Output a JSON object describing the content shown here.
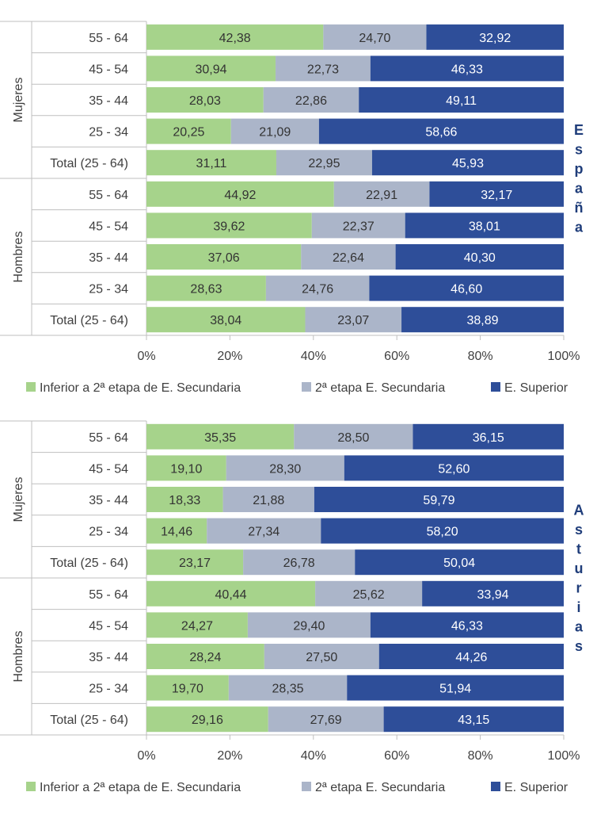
{
  "colors": {
    "series_0": "#a6d38b",
    "series_1": "#abb5c9",
    "series_2": "#2e4e99",
    "grid": "#bfbfbf"
  },
  "chart_data": [
    {
      "type": "bar",
      "orientation": "horizontal",
      "stacked": true,
      "region": "España",
      "groups": [
        {
          "label": "Mujeres",
          "categories": [
            "55 - 64",
            "45 - 54",
            "35 - 44",
            "25 - 34",
            "Total (25 - 64)"
          ]
        },
        {
          "label": "Hombres",
          "categories": [
            "55 - 64",
            "45 - 54",
            "35 - 44",
            "25 - 34",
            "Total (25 - 64)"
          ]
        }
      ],
      "series": [
        {
          "name": "Inferior a 2ª etapa de E. Secundaria",
          "values": [
            [
              "42,38",
              "30,94",
              "28,03",
              "20,25",
              "31,11"
            ],
            [
              "44,92",
              "39,62",
              "37,06",
              "28,63",
              "38,04"
            ]
          ]
        },
        {
          "name": "2ª etapa E. Secundaria",
          "values": [
            [
              "24,70",
              "22,73",
              "22,86",
              "21,09",
              "22,95"
            ],
            [
              "22,91",
              "22,37",
              "22,64",
              "24,76",
              "23,07"
            ]
          ]
        },
        {
          "name": "E. Superior",
          "values": [
            [
              "32,92",
              "46,33",
              "49,11",
              "58,66",
              "45,93"
            ],
            [
              "32,17",
              "38,01",
              "40,30",
              "46,60",
              "38,89"
            ]
          ]
        }
      ],
      "x_ticks": [
        "0%",
        "20%",
        "40%",
        "60%",
        "80%",
        "100%"
      ],
      "xlim": [
        0,
        100
      ],
      "legend_position": "bottom"
    },
    {
      "type": "bar",
      "orientation": "horizontal",
      "stacked": true,
      "region": "Asturias",
      "groups": [
        {
          "label": "Mujeres",
          "categories": [
            "55 - 64",
            "45 - 54",
            "35 - 44",
            "25 - 34",
            "Total (25 - 64)"
          ]
        },
        {
          "label": "Hombres",
          "categories": [
            "55 - 64",
            "45 - 54",
            "35 - 44",
            "25 - 34",
            "Total (25 - 64)"
          ]
        }
      ],
      "series": [
        {
          "name": "Inferior a 2ª etapa de E. Secundaria",
          "values": [
            [
              "35,35",
              "19,10",
              "18,33",
              "14,46",
              "23,17"
            ],
            [
              "40,44",
              "24,27",
              "28,24",
              "19,70",
              "29,16"
            ]
          ]
        },
        {
          "name": "2ª etapa E. Secundaria",
          "values": [
            [
              "28,50",
              "28,30",
              "21,88",
              "27,34",
              "26,78"
            ],
            [
              "25,62",
              "29,40",
              "27,50",
              "28,35",
              "27,69"
            ]
          ]
        },
        {
          "name": "E. Superior",
          "values": [
            [
              "36,15",
              "52,60",
              "59,79",
              "58,20",
              "50,04"
            ],
            [
              "33,94",
              "46,33",
              "44,26",
              "51,94",
              "43,15"
            ]
          ]
        }
      ],
      "x_ticks": [
        "0%",
        "20%",
        "40%",
        "60%",
        "80%",
        "100%"
      ],
      "xlim": [
        0,
        100
      ],
      "legend_position": "bottom"
    }
  ]
}
